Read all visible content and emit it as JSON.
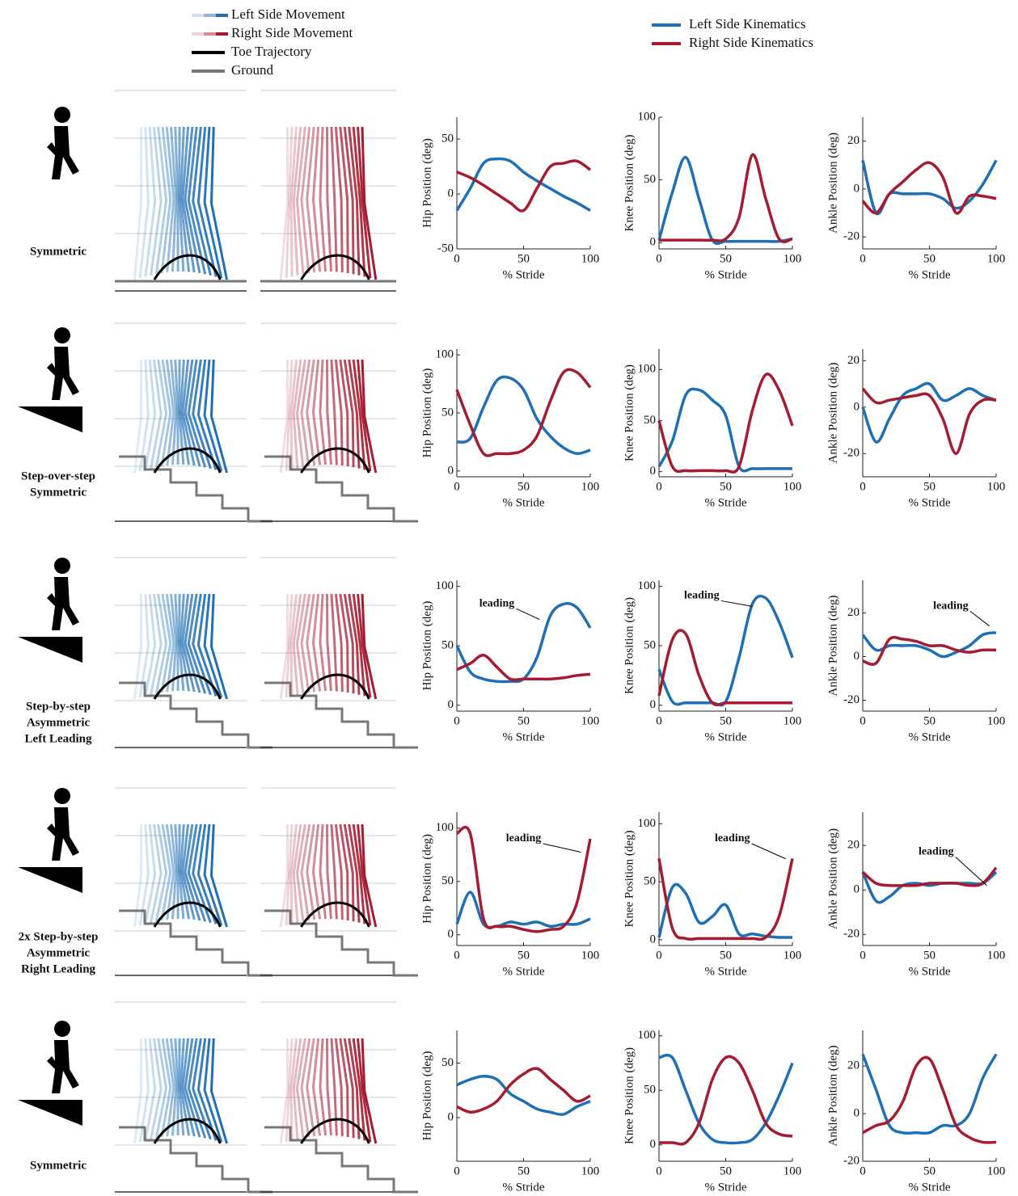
{
  "movement_legend": [
    "Left Side Movement",
    "Right Side Movement",
    "Toe Trajectory",
    "Ground"
  ],
  "row_labels": [
    [
      "Symmetric"
    ],
    [
      "Step-over-step",
      "Symmetric"
    ],
    [
      "Step-by-step",
      "Asymmetric",
      "Left Leading"
    ],
    [
      "2x Step-by-step",
      "Asymmetric",
      "Right Leading"
    ],
    [
      "Symmetric"
    ]
  ],
  "chart_data": [
    {
      "type": "line",
      "ylabel": "Hip Position (deg)",
      "xlabel": "% Stride",
      "x": [
        0,
        10,
        20,
        30,
        40,
        50,
        60,
        70,
        80,
        90,
        100
      ],
      "xlim": [
        0,
        100
      ],
      "xticks": [
        0,
        50,
        100
      ],
      "ylim": [
        -50,
        70
      ],
      "yticks": [
        -50,
        0,
        50
      ],
      "series": [
        {
          "name": "Left Side Kinematics",
          "color": "#1f6fb5",
          "values": [
            -15,
            5,
            28,
            32,
            30,
            20,
            12,
            5,
            -2,
            -8,
            -15
          ]
        },
        {
          "name": "Right Side Kinematics",
          "color": "#a51c30",
          "values": [
            20,
            15,
            8,
            0,
            -8,
            -15,
            5,
            25,
            28,
            30,
            22
          ]
        }
      ]
    },
    {
      "type": "line",
      "ylabel": "Knee Position (deg)",
      "xlabel": "% Stride",
      "x": [
        0,
        10,
        20,
        30,
        40,
        50,
        60,
        70,
        80,
        90,
        100
      ],
      "xlim": [
        0,
        100
      ],
      "xticks": [
        0,
        50,
        100
      ],
      "ylim": [
        -5,
        100
      ],
      "yticks": [
        0,
        50,
        100
      ],
      "series": [
        {
          "color": "#1f6fb5",
          "values": [
            2,
            40,
            68,
            35,
            2,
            1,
            1,
            1,
            1,
            1,
            3
          ]
        },
        {
          "color": "#a51c30",
          "values": [
            2,
            2,
            2,
            2,
            2,
            3,
            20,
            70,
            35,
            3,
            3
          ]
        }
      ]
    },
    {
      "type": "line",
      "ylabel": "Ankle Position (deg)",
      "xlabel": "% Stride",
      "x": [
        0,
        10,
        20,
        30,
        40,
        50,
        60,
        70,
        80,
        90,
        100
      ],
      "xlim": [
        0,
        100
      ],
      "xticks": [
        0,
        50,
        100
      ],
      "ylim": [
        -25,
        30
      ],
      "yticks": [
        -20,
        0,
        20
      ],
      "series": [
        {
          "color": "#1f6fb5",
          "values": [
            12,
            -10,
            -2,
            -2,
            -2,
            -2,
            -4,
            -8,
            -5,
            2,
            12
          ]
        },
        {
          "color": "#a51c30",
          "values": [
            -5,
            -10,
            -2,
            3,
            8,
            11,
            5,
            -10,
            -3,
            -3,
            -4
          ]
        }
      ]
    },
    {
      "type": "line",
      "ylabel": "Hip Position (deg)",
      "xlabel": "% Stride",
      "x": [
        0,
        10,
        20,
        30,
        40,
        50,
        60,
        70,
        80,
        90,
        100
      ],
      "xlim": [
        0,
        100
      ],
      "xticks": [
        0,
        50,
        100
      ],
      "ylim": [
        -5,
        105
      ],
      "yticks": [
        0,
        50,
        100
      ],
      "series": [
        {
          "color": "#1f6fb5",
          "values": [
            25,
            28,
            55,
            78,
            80,
            70,
            45,
            30,
            20,
            15,
            18
          ]
        },
        {
          "color": "#a51c30",
          "values": [
            70,
            40,
            15,
            15,
            15,
            18,
            30,
            60,
            85,
            85,
            72
          ]
        }
      ]
    },
    {
      "type": "line",
      "ylabel": "Knee Position (deg)",
      "xlabel": "% Stride",
      "x": [
        0,
        10,
        20,
        30,
        40,
        50,
        60,
        70,
        80,
        90,
        100
      ],
      "xlim": [
        0,
        100
      ],
      "xticks": [
        0,
        50,
        100
      ],
      "ylim": [
        -5,
        120
      ],
      "yticks": [
        0,
        50,
        100
      ],
      "series": [
        {
          "color": "#1f6fb5",
          "values": [
            5,
            30,
            75,
            80,
            70,
            55,
            5,
            3,
            3,
            3,
            3
          ]
        },
        {
          "color": "#a51c30",
          "values": [
            50,
            5,
            1,
            1,
            1,
            1,
            5,
            60,
            95,
            80,
            45
          ]
        }
      ]
    },
    {
      "type": "line",
      "ylabel": "Ankle Position (deg)",
      "xlabel": "% Stride",
      "x": [
        0,
        10,
        20,
        30,
        40,
        50,
        60,
        70,
        80,
        90,
        100
      ],
      "xlim": [
        0,
        100
      ],
      "xticks": [
        0,
        50,
        100
      ],
      "ylim": [
        -30,
        25
      ],
      "yticks": [
        -20,
        0,
        20
      ],
      "series": [
        {
          "color": "#1f6fb5",
          "values": [
            0,
            -15,
            -5,
            5,
            8,
            10,
            3,
            5,
            8,
            5,
            3
          ]
        },
        {
          "color": "#a51c30",
          "values": [
            8,
            2,
            3,
            4,
            5,
            5,
            -5,
            -20,
            -3,
            3,
            3
          ]
        }
      ]
    },
    {
      "type": "line",
      "ylabel": "Hip Position (deg)",
      "xlabel": "% Stride",
      "x": [
        0,
        10,
        20,
        30,
        40,
        50,
        60,
        70,
        80,
        90,
        100
      ],
      "xlim": [
        0,
        100
      ],
      "xticks": [
        0,
        50,
        100
      ],
      "ylim": [
        -5,
        105
      ],
      "yticks": [
        0,
        50,
        100
      ],
      "annotation": "leading",
      "series": [
        {
          "color": "#1f6fb5",
          "values": [
            50,
            28,
            22,
            20,
            20,
            22,
            40,
            75,
            85,
            82,
            65
          ]
        },
        {
          "color": "#a51c30",
          "values": [
            30,
            35,
            42,
            32,
            22,
            22,
            22,
            22,
            23,
            25,
            26
          ]
        }
      ]
    },
    {
      "type": "line",
      "ylabel": "Knee Position (deg)",
      "xlabel": "% Stride",
      "x": [
        0,
        10,
        20,
        30,
        40,
        50,
        60,
        70,
        80,
        90,
        100
      ],
      "xlim": [
        0,
        100
      ],
      "xticks": [
        0,
        50,
        100
      ],
      "ylim": [
        -5,
        105
      ],
      "yticks": [
        0,
        50,
        100
      ],
      "annotation": "leading",
      "series": [
        {
          "color": "#1f6fb5",
          "values": [
            30,
            3,
            2,
            2,
            2,
            3,
            40,
            85,
            90,
            70,
            40
          ]
        },
        {
          "color": "#a51c30",
          "values": [
            8,
            55,
            60,
            25,
            2,
            2,
            2,
            2,
            2,
            2,
            2
          ]
        }
      ]
    },
    {
      "type": "line",
      "ylabel": "Ankle Position (deg)",
      "xlabel": "% Stride",
      "x": [
        0,
        10,
        20,
        30,
        40,
        50,
        60,
        70,
        80,
        90,
        100
      ],
      "xlim": [
        0,
        100
      ],
      "xticks": [
        0,
        50,
        100
      ],
      "ylim": [
        -25,
        35
      ],
      "yticks": [
        -20,
        0,
        20
      ],
      "annotation": "leading",
      "series": [
        {
          "color": "#1f6fb5",
          "values": [
            10,
            3,
            5,
            5,
            5,
            3,
            0,
            2,
            5,
            10,
            11
          ]
        },
        {
          "color": "#a51c30",
          "values": [
            -2,
            -3,
            8,
            8,
            7,
            5,
            5,
            3,
            2,
            3,
            3
          ]
        }
      ]
    },
    {
      "type": "line",
      "ylabel": "Hip Position (deg)",
      "xlabel": "% Stride",
      "x": [
        0,
        10,
        20,
        30,
        40,
        50,
        60,
        70,
        80,
        90,
        100
      ],
      "xlim": [
        0,
        100
      ],
      "xticks": [
        0,
        50,
        100
      ],
      "ylim": [
        -10,
        115
      ],
      "yticks": [
        0,
        50,
        100
      ],
      "annotation": "leading",
      "series": [
        {
          "color": "#1f6fb5",
          "values": [
            10,
            40,
            10,
            8,
            12,
            10,
            12,
            8,
            10,
            10,
            15
          ]
        },
        {
          "color": "#a51c30",
          "values": [
            95,
            95,
            15,
            8,
            8,
            5,
            3,
            5,
            8,
            30,
            90
          ]
        }
      ]
    },
    {
      "type": "line",
      "ylabel": "Knee Position (deg)",
      "xlabel": "% Stride",
      "x": [
        0,
        10,
        20,
        30,
        40,
        50,
        60,
        70,
        80,
        90,
        100
      ],
      "xlim": [
        0,
        100
      ],
      "xticks": [
        0,
        50,
        100
      ],
      "ylim": [
        -5,
        110
      ],
      "yticks": [
        0,
        50,
        100
      ],
      "annotation": "leading",
      "series": [
        {
          "color": "#1f6fb5",
          "values": [
            2,
            45,
            40,
            15,
            20,
            30,
            5,
            5,
            3,
            2,
            2
          ]
        },
        {
          "color": "#a51c30",
          "values": [
            70,
            10,
            1,
            1,
            1,
            1,
            1,
            1,
            2,
            20,
            70
          ]
        }
      ]
    },
    {
      "type": "line",
      "ylabel": "Ankle Position (deg)",
      "xlabel": "% Stride",
      "x": [
        0,
        10,
        20,
        30,
        40,
        50,
        60,
        70,
        80,
        90,
        100
      ],
      "xlim": [
        0,
        100
      ],
      "xticks": [
        0,
        50,
        100
      ],
      "ylim": [
        -25,
        35
      ],
      "yticks": [
        -20,
        0,
        20
      ],
      "annotation": "leading",
      "series": [
        {
          "color": "#1f6fb5",
          "values": [
            8,
            -5,
            -3,
            2,
            3,
            2,
            3,
            3,
            3,
            3,
            8
          ]
        },
        {
          "color": "#a51c30",
          "values": [
            8,
            3,
            2,
            2,
            2,
            3,
            3,
            3,
            2,
            3,
            10
          ]
        }
      ]
    },
    {
      "type": "line",
      "ylabel": "Hip Position (deg)",
      "xlabel": "% Stride",
      "x": [
        0,
        10,
        20,
        30,
        40,
        50,
        60,
        70,
        80,
        90,
        100
      ],
      "xlim": [
        0,
        100
      ],
      "xticks": [
        0,
        50,
        100
      ],
      "ylim": [
        -40,
        80
      ],
      "yticks": [
        0,
        50
      ],
      "series": [
        {
          "color": "#1f6fb5",
          "values": [
            30,
            35,
            38,
            35,
            22,
            15,
            8,
            5,
            3,
            10,
            15
          ]
        },
        {
          "color": "#a51c30",
          "values": [
            10,
            5,
            8,
            15,
            30,
            40,
            45,
            35,
            25,
            15,
            20
          ]
        }
      ]
    },
    {
      "type": "line",
      "ylabel": "Knee Position (deg)",
      "xlabel": "% Stride",
      "x": [
        0,
        10,
        20,
        30,
        40,
        50,
        60,
        70,
        80,
        90,
        100
      ],
      "xlim": [
        0,
        100
      ],
      "xticks": [
        0,
        50,
        100
      ],
      "ylim": [
        -15,
        105
      ],
      "yticks": [
        0,
        50,
        100
      ],
      "series": [
        {
          "color": "#1f6fb5",
          "values": [
            80,
            80,
            50,
            20,
            5,
            2,
            2,
            5,
            20,
            45,
            75
          ]
        },
        {
          "color": "#a51c30",
          "values": [
            2,
            2,
            2,
            20,
            60,
            80,
            75,
            50,
            20,
            10,
            8
          ]
        }
      ]
    },
    {
      "type": "line",
      "ylabel": "Ankle Position (deg)",
      "xlabel": "% Stride",
      "x": [
        0,
        10,
        20,
        30,
        40,
        50,
        60,
        70,
        80,
        90,
        100
      ],
      "xlim": [
        0,
        100
      ],
      "xticks": [
        0,
        50,
        100
      ],
      "ylim": [
        -20,
        35
      ],
      "yticks": [
        -20,
        0,
        20
      ],
      "series": [
        {
          "color": "#1f6fb5",
          "values": [
            25,
            10,
            -5,
            -8,
            -8,
            -8,
            -5,
            -5,
            0,
            15,
            25
          ]
        },
        {
          "color": "#a51c30",
          "values": [
            -8,
            -5,
            -3,
            5,
            20,
            23,
            10,
            -5,
            -10,
            -12,
            -12
          ]
        }
      ]
    }
  ]
}
